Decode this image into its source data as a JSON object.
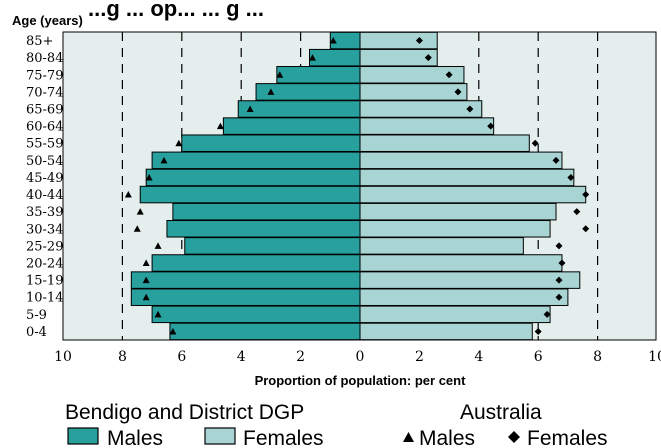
{
  "page_title_fragment": "...g ... op...  ... g ...",
  "chart_data": {
    "type": "bar",
    "orientation": "population-pyramid",
    "title": "",
    "ylabel": "Age (years)",
    "xlabel": "Proportion of population: per cent",
    "xlim": [
      -10,
      10
    ],
    "x_ticks": [
      10,
      8,
      6,
      4,
      2,
      0,
      2,
      4,
      6,
      8,
      10
    ],
    "grid": "dashed vertical lines at 2, 4, 6, 8 on both sides",
    "categories": [
      "0-4",
      "5-9",
      "10-14",
      "15-19",
      "20-24",
      "25-29",
      "30-34",
      "35-39",
      "40-44",
      "45-49",
      "50-54",
      "55-59",
      "60-64",
      "65-69",
      "70-74",
      "75-79",
      "80-84",
      "85+"
    ],
    "series": [
      {
        "name": "Males",
        "group": "Bendigo and District DGP",
        "mark": "bar",
        "side": "left",
        "color": "#27a09e",
        "values": [
          6.4,
          7.0,
          7.7,
          7.7,
          7.0,
          5.9,
          6.5,
          6.3,
          7.4,
          7.2,
          7.0,
          6.0,
          4.6,
          4.1,
          3.5,
          2.8,
          1.7,
          1.0
        ]
      },
      {
        "name": "Females",
        "group": "Bendigo and District DGP",
        "mark": "bar",
        "side": "right",
        "color": "#a8d5d3",
        "values": [
          5.8,
          6.4,
          7.0,
          7.4,
          6.8,
          5.5,
          6.4,
          6.6,
          7.6,
          7.2,
          6.8,
          5.7,
          4.5,
          4.1,
          3.6,
          3.5,
          2.6,
          2.6
        ]
      },
      {
        "name": "Males",
        "group": "Australia",
        "mark": "triangle",
        "side": "left",
        "values": [
          6.3,
          6.8,
          7.2,
          7.2,
          7.2,
          6.8,
          7.5,
          7.4,
          7.8,
          7.1,
          6.6,
          6.1,
          4.7,
          3.7,
          3.0,
          2.7,
          1.6,
          0.9
        ]
      },
      {
        "name": "Females",
        "group": "Australia",
        "mark": "diamond",
        "side": "right",
        "values": [
          6.0,
          6.3,
          6.7,
          6.7,
          6.8,
          6.7,
          7.6,
          7.3,
          7.6,
          7.1,
          6.6,
          5.9,
          4.4,
          3.7,
          3.3,
          3.0,
          2.3,
          2.0
        ]
      }
    ],
    "legend": {
      "placement": "bottom",
      "groups": [
        {
          "title": "Bendigo and District DGP",
          "items": [
            "Males",
            "Females"
          ]
        },
        {
          "title": "Australia",
          "items": [
            "Males",
            "Females"
          ]
        }
      ]
    }
  }
}
